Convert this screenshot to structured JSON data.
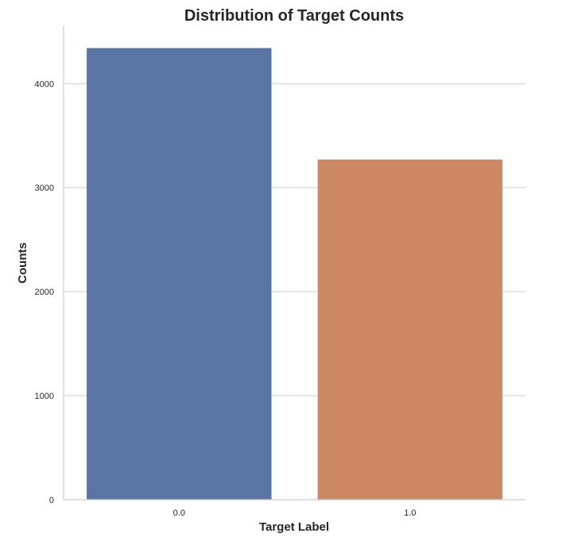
{
  "chart_data": {
    "type": "bar",
    "title": "Distribution of Target Counts",
    "xlabel": "Target Label",
    "ylabel": "Counts",
    "categories": [
      "0.0",
      "1.0"
    ],
    "values": [
      4342,
      3271
    ],
    "colors": [
      "#5975a4",
      "#cc8963"
    ],
    "ylim": [
      0,
      4560
    ],
    "yticks": [
      0,
      1000,
      2000,
      3000,
      4000
    ],
    "grid": true
  }
}
